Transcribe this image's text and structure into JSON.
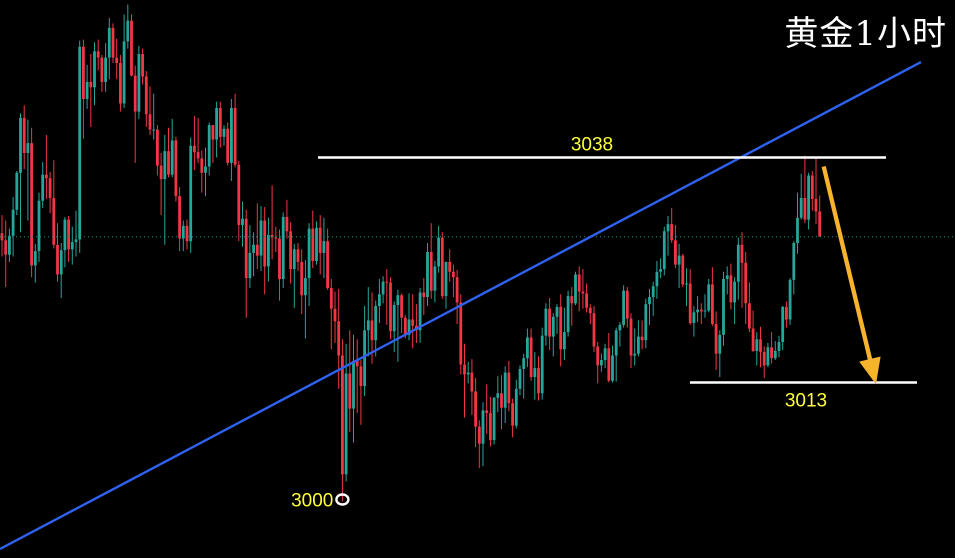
{
  "header": {
    "title": "黄金1小时"
  },
  "chart_data": {
    "type": "candlestick",
    "title": "黄金1小时",
    "ylim": [
      2993.5,
      3055.5
    ],
    "colors": {
      "up": "#26a69a",
      "down": "#f23645",
      "background": "#000000",
      "trendline": "#2f62f0",
      "level": "#ffffff",
      "label": "#ffff3a",
      "arrow": "#f7b32b",
      "current_price_line": "#1d8f87"
    },
    "levels": [
      {
        "name": "resistance",
        "label": "3038",
        "value": 3038.0
      },
      {
        "name": "support",
        "label": "3013",
        "value": 3013.0
      }
    ],
    "low_marker": {
      "label": "3000",
      "value": 3000.0
    },
    "current_price": 3029.2,
    "trendline": {
      "start_price": 2994.5,
      "end_price": 3048.6
    },
    "projection": {
      "from_price": 3037.0,
      "to_price": 3012.8
    },
    "candles": [
      [
        3029.6,
        3031.6,
        3027.0,
        3028.8
      ],
      [
        3028.8,
        3031.0,
        3023.6,
        3027.2
      ],
      [
        3027.2,
        3030.1,
        3026.4,
        3029.3
      ],
      [
        3029.3,
        3033.6,
        3027.0,
        3032.2
      ],
      [
        3032.2,
        3036.5,
        3031.6,
        3036.3
      ],
      [
        3036.3,
        3042.9,
        3029.7,
        3042.4
      ],
      [
        3042.4,
        3043.8,
        3036.7,
        3038.5
      ],
      [
        3038.5,
        3042.2,
        3031.0,
        3039.6
      ],
      [
        3039.6,
        3041.3,
        3024.7,
        3026.0
      ],
      [
        3026.0,
        3028.4,
        3024.1,
        3027.6
      ],
      [
        3027.6,
        3034.1,
        3026.4,
        3033.2
      ],
      [
        3033.2,
        3037.5,
        3032.4,
        3036.1
      ],
      [
        3036.1,
        3040.5,
        3033.4,
        3035.7
      ],
      [
        3035.7,
        3036.4,
        3031.8,
        3033.5
      ],
      [
        3033.5,
        3037.7,
        3027.9,
        3028.3
      ],
      [
        3028.3,
        3030.7,
        3024.2,
        3025.0
      ],
      [
        3025.0,
        3028.5,
        3022.4,
        3027.7
      ],
      [
        3027.7,
        3031.4,
        3025.8,
        3031.1
      ],
      [
        3031.1,
        3031.5,
        3026.4,
        3027.8
      ],
      [
        3027.8,
        3030.3,
        3026.1,
        3028.6
      ],
      [
        3028.6,
        3032.1,
        3027.0,
        3028.9
      ],
      [
        3028.9,
        3051.0,
        3027.4,
        3050.3
      ],
      [
        3050.3,
        3051.1,
        3040.1,
        3044.5
      ],
      [
        3044.5,
        3048.3,
        3043.4,
        3046.4
      ],
      [
        3046.4,
        3049.5,
        3041.4,
        3045.8
      ],
      [
        3045.8,
        3050.8,
        3043.8,
        3049.8
      ],
      [
        3049.8,
        3051.1,
        3047.7,
        3049.1
      ],
      [
        3049.1,
        3049.4,
        3045.3,
        3046.4
      ],
      [
        3046.4,
        3050.7,
        3045.3,
        3049.1
      ],
      [
        3049.1,
        3053.5,
        3046.7,
        3052.4
      ],
      [
        3052.4,
        3052.9,
        3048.5,
        3049.1
      ],
      [
        3049.1,
        3051.2,
        3046.7,
        3048.5
      ],
      [
        3048.5,
        3049.4,
        3043.1,
        3044.0
      ],
      [
        3044.0,
        3053.9,
        3043.5,
        3050.9
      ],
      [
        3050.9,
        3055.0,
        3050.1,
        3053.2
      ],
      [
        3053.2,
        3053.9,
        3047.0,
        3047.1
      ],
      [
        3047.1,
        3048.2,
        3037.4,
        3043.1
      ],
      [
        3043.1,
        3050.4,
        3042.3,
        3049.5
      ],
      [
        3049.5,
        3050.1,
        3046.1,
        3047.0
      ],
      [
        3047.0,
        3047.6,
        3041.4,
        3042.8
      ],
      [
        3042.8,
        3045.9,
        3040.5,
        3041.1
      ],
      [
        3041.1,
        3045.1,
        3040.0,
        3041.1
      ],
      [
        3041.1,
        3041.6,
        3036.0,
        3037.1
      ],
      [
        3037.1,
        3038.5,
        3031.6,
        3035.6
      ],
      [
        3035.6,
        3040.5,
        3028.3,
        3038.7
      ],
      [
        3038.7,
        3041.3,
        3035.8,
        3036.1
      ],
      [
        3036.1,
        3042.3,
        3035.8,
        3039.9
      ],
      [
        3039.9,
        3040.3,
        3033.1,
        3033.7
      ],
      [
        3033.7,
        3034.7,
        3027.6,
        3029.0
      ],
      [
        3029.0,
        3031.0,
        3027.6,
        3030.4
      ],
      [
        3030.4,
        3031.1,
        3027.8,
        3028.7
      ],
      [
        3028.7,
        3040.2,
        3027.4,
        3039.3
      ],
      [
        3039.3,
        3042.6,
        3036.6,
        3038.6
      ],
      [
        3038.6,
        3042.4,
        3037.4,
        3037.9
      ],
      [
        3037.9,
        3038.8,
        3034.1,
        3036.3
      ],
      [
        3036.3,
        3039.1,
        3033.7,
        3037.0
      ],
      [
        3037.0,
        3041.9,
        3036.0,
        3041.6
      ],
      [
        3041.6,
        3041.6,
        3037.4,
        3040.0
      ],
      [
        3040.0,
        3044.2,
        3038.0,
        3043.5
      ],
      [
        3043.5,
        3044.2,
        3039.1,
        3040.3
      ],
      [
        3040.3,
        3041.6,
        3039.3,
        3041.2
      ],
      [
        3041.2,
        3041.9,
        3037.1,
        3037.4
      ],
      [
        3037.4,
        3044.5,
        3035.4,
        3043.5
      ],
      [
        3043.5,
        3045.1,
        3036.9,
        3037.2
      ],
      [
        3037.2,
        3037.6,
        3028.7,
        3030.5
      ],
      [
        3030.5,
        3033.1,
        3028.1,
        3031.2
      ],
      [
        3031.2,
        3032.2,
        3020.2,
        3024.6
      ],
      [
        3024.6,
        3030.5,
        3023.5,
        3027.4
      ],
      [
        3027.4,
        3029.7,
        3024.8,
        3028.3
      ],
      [
        3028.3,
        3032.9,
        3025.6,
        3027.1
      ],
      [
        3027.1,
        3032.6,
        3025.4,
        3031.0
      ],
      [
        3031.0,
        3032.5,
        3022.8,
        3025.9
      ],
      [
        3025.9,
        3031.3,
        3024.2,
        3029.4
      ],
      [
        3029.4,
        3034.9,
        3026.7,
        3029.1
      ],
      [
        3029.1,
        3030.3,
        3027.5,
        3029.0
      ],
      [
        3029.0,
        3030.0,
        3022.1,
        3024.5
      ],
      [
        3024.5,
        3031.9,
        3023.5,
        3031.4
      ],
      [
        3031.4,
        3033.3,
        3029.0,
        3029.8
      ],
      [
        3029.8,
        3030.8,
        3024.0,
        3025.6
      ],
      [
        3025.6,
        3028.4,
        3021.3,
        3027.8
      ],
      [
        3027.8,
        3028.5,
        3025.4,
        3026.4
      ],
      [
        3026.4,
        3027.8,
        3020.6,
        3022.7
      ],
      [
        3022.7,
        3026.6,
        3017.9,
        3024.6
      ],
      [
        3024.6,
        3030.7,
        3021.5,
        3030.1
      ],
      [
        3030.1,
        3032.1,
        3025.7,
        3026.5
      ],
      [
        3026.5,
        3030.9,
        3026.1,
        3030.2
      ],
      [
        3030.2,
        3031.6,
        3025.0,
        3027.4
      ],
      [
        3027.4,
        3031.3,
        3024.6,
        3028.7
      ],
      [
        3028.7,
        3030.1,
        3023.3,
        3023.5
      ],
      [
        3023.5,
        3024.5,
        3016.7,
        3021.2
      ],
      [
        3021.2,
        3023.1,
        3017.4,
        3019.8
      ],
      [
        3019.8,
        3023.4,
        3012.3,
        3016.0
      ],
      [
        3016.0,
        3017.8,
        2999.8,
        3002.8
      ],
      [
        3002.8,
        3017.3,
        3002.0,
        3014.0
      ],
      [
        3014.0,
        3018.8,
        3007.5,
        3010.1
      ],
      [
        3010.1,
        3018.3,
        3006.3,
        3015.4
      ],
      [
        3015.4,
        3017.8,
        3009.6,
        3014.8
      ],
      [
        3014.8,
        3015.5,
        3008.3,
        3012.6
      ],
      [
        3012.6,
        3021.5,
        3011.5,
        3018.8
      ],
      [
        3018.8,
        3023.6,
        3015.9,
        3019.9
      ],
      [
        3019.9,
        3023.0,
        3015.1,
        3017.7
      ],
      [
        3017.7,
        3022.1,
        3015.9,
        3021.5
      ],
      [
        3021.5,
        3024.5,
        3019.6,
        3022.8
      ],
      [
        3022.8,
        3024.8,
        3021.8,
        3024.2
      ],
      [
        3024.2,
        3025.6,
        3019.4,
        3024.1
      ],
      [
        3024.1,
        3024.7,
        3017.8,
        3018.7
      ],
      [
        3018.7,
        3022.0,
        3016.4,
        3021.6
      ],
      [
        3021.6,
        3023.3,
        3015.3,
        3022.7
      ],
      [
        3022.7,
        3022.9,
        3018.5,
        3020.2
      ],
      [
        3020.2,
        3020.5,
        3017.9,
        3018.3
      ],
      [
        3018.3,
        3022.9,
        3017.7,
        3020.0
      ],
      [
        3020.0,
        3022.8,
        3016.8,
        3019.3
      ],
      [
        3019.3,
        3021.7,
        3017.4,
        3018.8
      ],
      [
        3018.8,
        3023.5,
        3017.4,
        3023.0
      ],
      [
        3023.0,
        3024.6,
        3020.5,
        3022.5
      ],
      [
        3022.5,
        3028.5,
        3021.5,
        3027.5
      ],
      [
        3027.5,
        3030.7,
        3022.3,
        3023.2
      ],
      [
        3023.2,
        3026.5,
        3021.9,
        3025.9
      ],
      [
        3025.9,
        3030.4,
        3025.2,
        3029.1
      ],
      [
        3029.1,
        3029.7,
        3022.3,
        3022.6
      ],
      [
        3022.6,
        3026.4,
        3021.2,
        3026.4
      ],
      [
        3026.4,
        3027.8,
        3024.2,
        3025.3
      ],
      [
        3025.3,
        3026.1,
        3022.5,
        3024.7
      ],
      [
        3024.7,
        3025.5,
        3019.5,
        3021.9
      ],
      [
        3021.9,
        3022.8,
        3013.9,
        3015.0
      ],
      [
        3015.0,
        3017.3,
        3009.1,
        3013.9
      ],
      [
        3013.9,
        3015.3,
        3012.9,
        3014.1
      ],
      [
        3014.1,
        3015.6,
        3009.4,
        3012.0
      ],
      [
        3012.0,
        3013.5,
        3005.8,
        3008.1
      ],
      [
        3008.1,
        3008.8,
        3003.5,
        3006.2
      ],
      [
        3006.2,
        3010.8,
        3003.7,
        3009.9
      ],
      [
        3009.9,
        3012.8,
        3007.3,
        3009.6
      ],
      [
        3009.6,
        3011.4,
        3005.9,
        3006.6
      ],
      [
        3006.6,
        3011.4,
        3006.1,
        3011.3
      ],
      [
        3011.3,
        3013.7,
        3009.7,
        3011.8
      ],
      [
        3011.8,
        3013.8,
        3007.8,
        3010.2
      ],
      [
        3010.2,
        3014.8,
        3008.5,
        3014.1
      ],
      [
        3014.1,
        3015.4,
        3009.8,
        3010.7
      ],
      [
        3010.7,
        3011.2,
        3006.9,
        3008.2
      ],
      [
        3008.2,
        3013.3,
        3007.9,
        3012.3
      ],
      [
        3012.3,
        3014.9,
        3011.6,
        3014.5
      ],
      [
        3014.5,
        3016.2,
        3011.2,
        3015.7
      ],
      [
        3015.7,
        3019.0,
        3014.7,
        3018.0
      ],
      [
        3018.0,
        3019.0,
        3013.2,
        3013.6
      ],
      [
        3013.6,
        3016.4,
        3011.1,
        3014.6
      ],
      [
        3014.6,
        3015.9,
        3011.0,
        3011.8
      ],
      [
        3011.8,
        3019.1,
        3011.1,
        3018.2
      ],
      [
        3018.2,
        3021.8,
        3017.1,
        3021.2
      ],
      [
        3021.2,
        3022.4,
        3016.6,
        3018.1
      ],
      [
        3018.1,
        3020.7,
        3015.9,
        3020.3
      ],
      [
        3020.3,
        3021.7,
        3018.4,
        3021.4
      ],
      [
        3021.4,
        3022.8,
        3014.8,
        3016.7
      ],
      [
        3016.7,
        3021.3,
        3015.5,
        3018.6
      ],
      [
        3018.6,
        3023.2,
        3018.1,
        3022.6
      ],
      [
        3022.6,
        3023.6,
        3019.3,
        3021.8
      ],
      [
        3021.8,
        3025.3,
        3021.6,
        3025.0
      ],
      [
        3025.0,
        3025.9,
        3020.9,
        3023.1
      ],
      [
        3023.1,
        3025.6,
        3021.2,
        3022.9
      ],
      [
        3022.9,
        3024.0,
        3020.8,
        3021.3
      ],
      [
        3021.3,
        3021.7,
        3019.5,
        3020.7
      ],
      [
        3020.7,
        3021.5,
        3016.4,
        3017.0
      ],
      [
        3017.0,
        3017.5,
        3012.9,
        3014.9
      ],
      [
        3014.9,
        3016.2,
        3014.2,
        3015.5
      ],
      [
        3015.5,
        3017.3,
        3014.6,
        3016.8
      ],
      [
        3016.8,
        3018.5,
        3013.0,
        3013.2
      ],
      [
        3013.2,
        3017.1,
        3013.0,
        3016.0
      ],
      [
        3016.0,
        3019.1,
        3013.1,
        3018.8
      ],
      [
        3018.8,
        3019.7,
        3017.0,
        3019.4
      ],
      [
        3019.4,
        3023.8,
        3019.1,
        3023.2
      ],
      [
        3023.2,
        3023.6,
        3019.1,
        3020.1
      ],
      [
        3020.1,
        3020.7,
        3014.6,
        3016.0
      ],
      [
        3016.0,
        3019.0,
        3014.9,
        3016.2
      ],
      [
        3016.2,
        3019.9,
        3015.9,
        3018.1
      ],
      [
        3018.1,
        3019.9,
        3016.7,
        3017.7
      ],
      [
        3017.7,
        3022.3,
        3016.8,
        3021.7
      ],
      [
        3021.7,
        3023.4,
        3019.4,
        3022.5
      ],
      [
        3022.5,
        3024.2,
        3020.4,
        3023.7
      ],
      [
        3023.7,
        3026.5,
        3022.3,
        3025.3
      ],
      [
        3025.3,
        3026.8,
        3024.6,
        3025.6
      ],
      [
        3025.6,
        3030.3,
        3024.9,
        3029.8
      ],
      [
        3029.8,
        3031.5,
        3027.1,
        3030.6
      ],
      [
        3030.6,
        3032.4,
        3028.5,
        3028.8
      ],
      [
        3028.8,
        3030.5,
        3025.7,
        3026.1
      ],
      [
        3026.1,
        3028.4,
        3023.5,
        3027.1
      ],
      [
        3027.1,
        3027.3,
        3023.6,
        3023.9
      ],
      [
        3023.9,
        3025.7,
        3021.5,
        3024.0
      ],
      [
        3024.0,
        3025.6,
        3019.4,
        3019.6
      ],
      [
        3019.6,
        3021.5,
        3018.1,
        3020.8
      ],
      [
        3020.8,
        3022.6,
        3019.7,
        3021.1
      ],
      [
        3021.1,
        3021.8,
        3019.5,
        3020.9
      ],
      [
        3020.9,
        3022.8,
        3020.2,
        3021.0
      ],
      [
        3021.0,
        3024.5,
        3020.8,
        3023.9
      ],
      [
        3023.9,
        3025.8,
        3019.3,
        3019.5
      ],
      [
        3019.5,
        3020.9,
        3014.4,
        3016.2
      ],
      [
        3016.2,
        3018.8,
        3013.6,
        3018.3
      ],
      [
        3018.3,
        3025.3,
        3017.1,
        3024.5
      ],
      [
        3024.5,
        3025.9,
        3022.8,
        3024.9
      ],
      [
        3024.9,
        3026.2,
        3021.1,
        3021.9
      ],
      [
        3021.9,
        3024.7,
        3019.5,
        3024.2
      ],
      [
        3024.2,
        3029.1,
        3022.2,
        3028.3
      ],
      [
        3028.3,
        3029.7,
        3021.3,
        3026.3
      ],
      [
        3026.3,
        3027.5,
        3019.5,
        3021.8
      ],
      [
        3021.8,
        3024.1,
        3018.6,
        3019.0
      ],
      [
        3019.0,
        3021.0,
        3016.4,
        3016.5
      ],
      [
        3016.5,
        3018.6,
        3014.9,
        3017.8
      ],
      [
        3017.8,
        3019.2,
        3014.7,
        3016.4
      ],
      [
        3016.4,
        3017.0,
        3013.5,
        3014.9
      ],
      [
        3014.9,
        3017.4,
        3014.7,
        3016.9
      ],
      [
        3016.9,
        3018.6,
        3015.1,
        3015.7
      ],
      [
        3015.7,
        3017.6,
        3015.5,
        3016.5
      ],
      [
        3016.5,
        3018.2,
        3015.8,
        3017.5
      ],
      [
        3017.5,
        3021.5,
        3016.6,
        3021.4
      ],
      [
        3021.4,
        3022.0,
        3019.1,
        3020.0
      ],
      [
        3020.0,
        3024.6,
        3019.4,
        3024.4
      ],
      [
        3024.4,
        3028.7,
        3022.8,
        3028.5
      ],
      [
        3028.5,
        3034.1,
        3027.3,
        3031.3
      ],
      [
        3031.3,
        3036.2,
        3031.1,
        3033.5
      ],
      [
        3033.5,
        3038.2,
        3030.7,
        3031.1
      ],
      [
        3031.1,
        3036.3,
        3030.0,
        3036.0
      ],
      [
        3036.0,
        3036.5,
        3032.1,
        3033.4
      ],
      [
        3033.4,
        3038.0,
        3030.6,
        3032.0
      ],
      [
        3032.0,
        3033.8,
        3029.3,
        3029.2
      ]
    ]
  }
}
